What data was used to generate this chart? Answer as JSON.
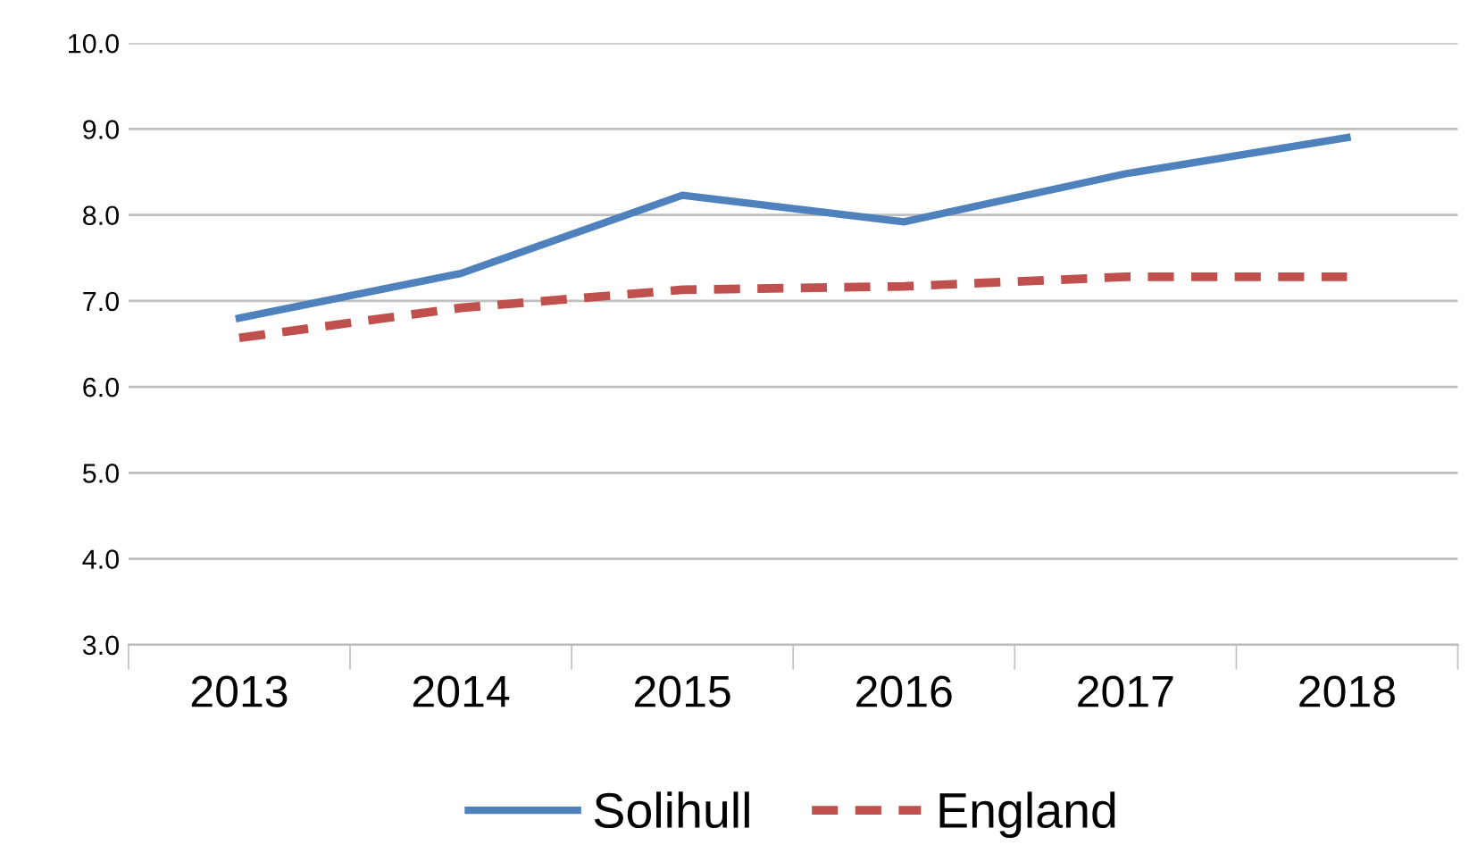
{
  "chart_data": {
    "type": "line",
    "categories": [
      "2013",
      "2014",
      "2015",
      "2016",
      "2017",
      "2018"
    ],
    "series": [
      {
        "name": "Solihull",
        "color": "#4f81bd",
        "values": [
          6.8,
          7.32,
          8.23,
          7.92,
          8.48,
          8.9
        ],
        "line_style": "solid"
      },
      {
        "name": "England",
        "color": "#c0504d",
        "values": [
          6.57,
          6.92,
          7.13,
          7.17,
          7.28,
          7.28
        ],
        "line_style": "dashed"
      }
    ],
    "ylim": [
      3.0,
      10.0
    ],
    "yticks": [
      {
        "value": 3,
        "label": "3.0"
      },
      {
        "value": 4,
        "label": "4.0"
      },
      {
        "value": 5,
        "label": "5.0"
      },
      {
        "value": 6,
        "label": "6.0"
      },
      {
        "value": 7,
        "label": "7.0"
      },
      {
        "value": 8,
        "label": "8.0"
      },
      {
        "value": 9,
        "label": "9.0"
      },
      {
        "value": 10,
        "label": "10.0"
      }
    ],
    "grid": "y",
    "legend": "bottom",
    "marker": "none"
  }
}
